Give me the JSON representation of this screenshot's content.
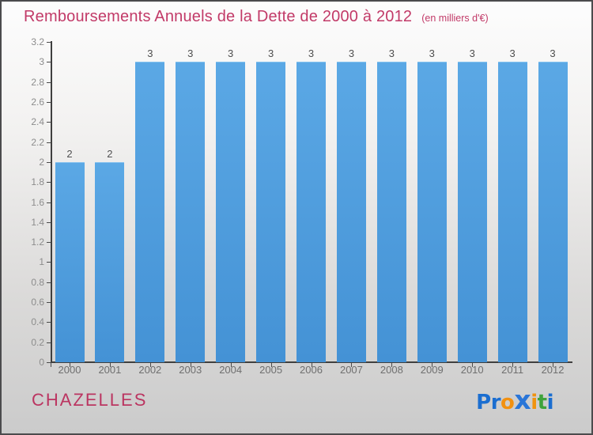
{
  "header": {
    "title": "Remboursements Annuels de la Dette de 2000 à 2012",
    "subtitle": "(en milliers d'€)"
  },
  "chart_data": {
    "type": "bar",
    "title": "Remboursements Annuels de la Dette de 2000 à 2012",
    "subtitle": "(en milliers d'€)",
    "categories": [
      "2000",
      "2001",
      "2002",
      "2003",
      "2004",
      "2005",
      "2006",
      "2007",
      "2008",
      "2009",
      "2010",
      "2011",
      "2012"
    ],
    "values": [
      2,
      2,
      3,
      3,
      3,
      3,
      3,
      3,
      3,
      3,
      3,
      3,
      3
    ],
    "xlabel": "",
    "ylabel": "",
    "ylim": [
      0,
      3.2
    ],
    "ytick_step": 0.2,
    "grid": false,
    "legend": null,
    "bar_color_top": "#5ba8e5",
    "bar_color_bottom": "#4492d5",
    "axis_color": "#3f3f3f",
    "tick_label_color": "#8c8c8c",
    "value_label_color": "#4d4d4d"
  },
  "footer": {
    "entity": "CHAZELLES",
    "logo": {
      "name": "Proxiti",
      "letters": [
        {
          "ch": "P",
          "color": "#1b6ed0",
          "big": false
        },
        {
          "ch": "r",
          "color": "#1b6ed0",
          "big": false
        },
        {
          "ch": "o",
          "color": "#f29111",
          "big": false
        },
        {
          "ch": "x",
          "color": "#2a76d8",
          "big": true
        },
        {
          "ch": "i",
          "color": "#f0930f",
          "big": false
        },
        {
          "ch": "t",
          "color": "#3fa33c",
          "big": false
        },
        {
          "ch": "i",
          "color": "#1b6ed0",
          "big": false
        }
      ]
    }
  },
  "colors": {
    "title": "#c23a68",
    "entity": "#bb3561"
  }
}
